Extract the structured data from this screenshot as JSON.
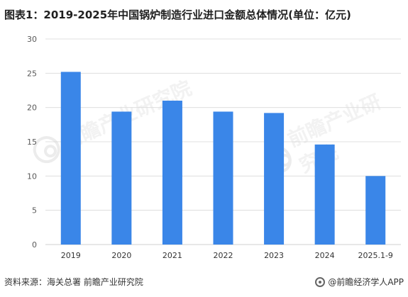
{
  "title": "图表1：2019-2025年中国锅炉制造行业进口金额总体情况(单位：亿元)",
  "source": "资料来源：海关总署 前瞻产业研究院",
  "brand": "@前瞻经济学人APP",
  "watermark_text": "前瞻产业研究院",
  "colors": {
    "bar": "#3a86e8",
    "grid": "#d9d9d9",
    "axis_text": "#595959"
  },
  "chart_data": {
    "type": "bar",
    "title": "图表1：2019-2025年中国锅炉制造行业进口金额总体情况(单位：亿元)",
    "categories": [
      "2019",
      "2020",
      "2021",
      "2022",
      "2023",
      "2024",
      "2025.1-9"
    ],
    "values": [
      25.2,
      19.4,
      21.0,
      19.4,
      19.2,
      14.6,
      10.0
    ],
    "ylim": [
      0,
      30
    ],
    "yticks": [
      0,
      5,
      10,
      15,
      20,
      25,
      30
    ],
    "xlabel": "",
    "ylabel": "",
    "grid": true,
    "legend": "none"
  }
}
